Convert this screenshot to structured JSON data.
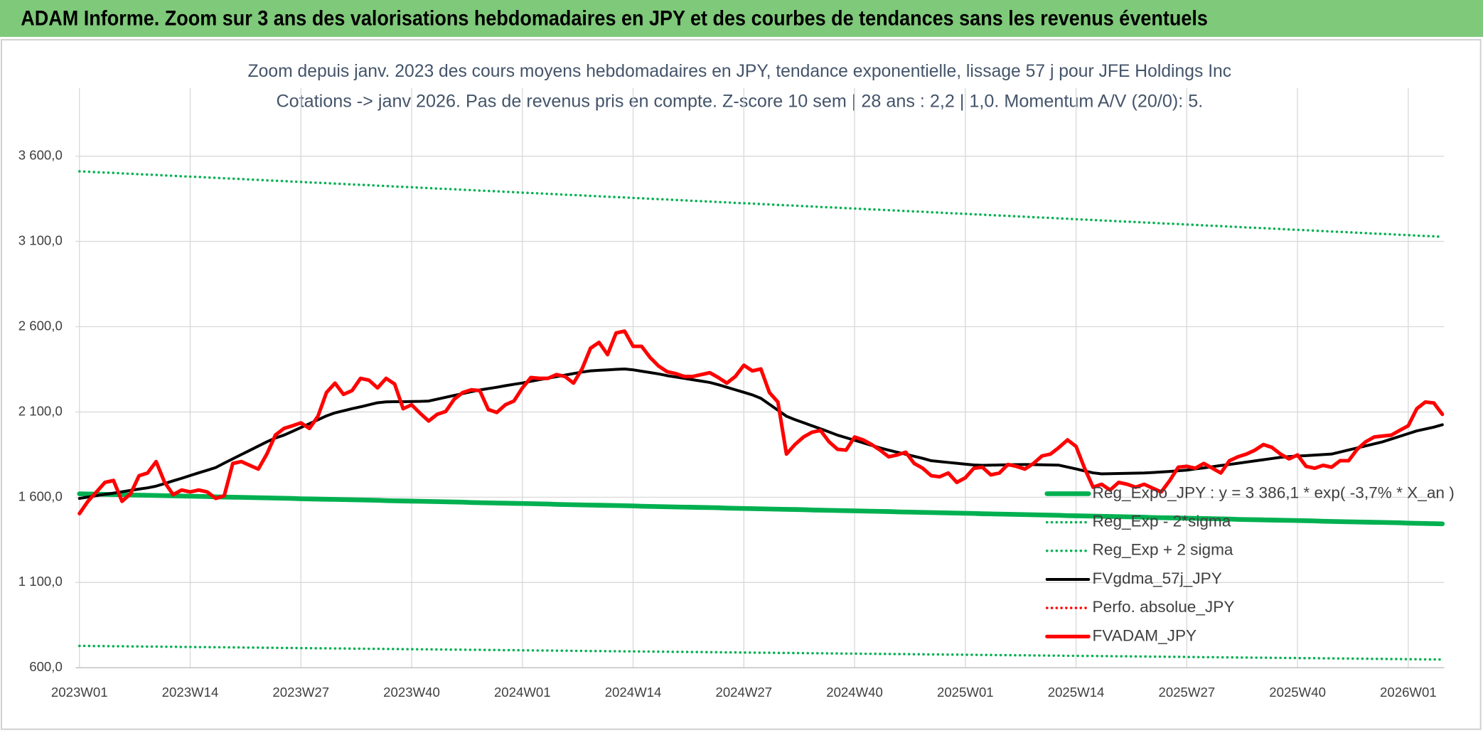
{
  "chart_data": {
    "type": "line",
    "title": "ADAM Informe. Zoom sur 3 ans des valorisations hebdomadaires en JPY et des courbes de tendances sans les revenus éventuels",
    "subtitle": [
      "Zoom depuis janv. 2023 des cours moyens hebdomadaires en JPY, tendance exponentielle, lissage 57 j pour JFE Holdings Inc",
      "Cotations -> janv 2026. Pas de revenus pris en compte. Z-score 10 sem | 28 ans : 2,2 | 1,0. Momentum A/V (20/0): 5."
    ],
    "categories": [
      "2023W01",
      null,
      null,
      null,
      null,
      null,
      null,
      null,
      null,
      null,
      null,
      null,
      null,
      "2023W14",
      null,
      null,
      null,
      null,
      null,
      null,
      null,
      null,
      null,
      null,
      null,
      null,
      "2023W27",
      null,
      null,
      null,
      null,
      null,
      null,
      null,
      null,
      null,
      null,
      null,
      null,
      "2023W40",
      null,
      null,
      null,
      null,
      null,
      null,
      null,
      null,
      null,
      null,
      null,
      null,
      "2024W01",
      null,
      null,
      null,
      null,
      null,
      null,
      null,
      null,
      null,
      null,
      null,
      null,
      "2024W14",
      null,
      null,
      null,
      null,
      null,
      null,
      null,
      null,
      null,
      null,
      null,
      null,
      "2024W27",
      null,
      null,
      null,
      null,
      null,
      null,
      null,
      null,
      null,
      null,
      null,
      null,
      "2024W40",
      null,
      null,
      null,
      null,
      null,
      null,
      null,
      null,
      null,
      null,
      null,
      null,
      "2025W01",
      null,
      null,
      null,
      null,
      null,
      null,
      null,
      null,
      null,
      null,
      null,
      null,
      "2025W14",
      null,
      null,
      null,
      null,
      null,
      null,
      null,
      null,
      null,
      null,
      null,
      null,
      "2025W27",
      null,
      null,
      null,
      null,
      null,
      null,
      null,
      null,
      null,
      null,
      null,
      null,
      "2025W40",
      null,
      null,
      null,
      null,
      null,
      null,
      null,
      null,
      null,
      null,
      null,
      null,
      "2026W01",
      null,
      null,
      null,
      null
    ],
    "ylim": [
      600,
      4000
    ],
    "yticks": [
      {
        "value": 600,
        "label": "600,0"
      },
      {
        "value": 1100,
        "label": "1 100,0"
      },
      {
        "value": 1600,
        "label": "1 600,0"
      },
      {
        "value": 2100,
        "label": "2 100,0"
      },
      {
        "value": 2600,
        "label": "2 600,0"
      },
      {
        "value": 3100,
        "label": "3 100,0"
      },
      {
        "value": 3600,
        "label": "3 600,0"
      }
    ],
    "grid": true,
    "legend": "lower right",
    "series": [
      {
        "name": "Reg_Expo_JPY : y = 3 386,1 * exp( -3,7% *  X_an )",
        "color": "#00b050",
        "dash": "solid",
        "values": [
          1620,
          1619,
          1618,
          1617,
          1616,
          1615,
          1613,
          1612,
          1611,
          1610,
          1609,
          1608,
          1607,
          1606,
          1605,
          1604,
          1602,
          1601,
          1600,
          1599,
          1598,
          1597,
          1596,
          1595,
          1594,
          1593,
          1591,
          1590,
          1589,
          1588,
          1587,
          1586,
          1585,
          1584,
          1583,
          1582,
          1580,
          1579,
          1578,
          1577,
          1576,
          1575,
          1574,
          1573,
          1572,
          1571,
          1569,
          1568,
          1567,
          1566,
          1565,
          1564,
          1563,
          1562,
          1561,
          1560,
          1558,
          1557,
          1556,
          1555,
          1554,
          1553,
          1552,
          1551,
          1550,
          1549,
          1547,
          1546,
          1545,
          1544,
          1543,
          1542,
          1541,
          1540,
          1539,
          1538,
          1536,
          1535,
          1534,
          1533,
          1532,
          1531,
          1530,
          1529,
          1528,
          1527,
          1525,
          1524,
          1523,
          1522,
          1521,
          1520,
          1519,
          1518,
          1517,
          1516,
          1514,
          1513,
          1512,
          1511,
          1510,
          1509,
          1508,
          1507,
          1506,
          1505,
          1503,
          1502,
          1501,
          1500,
          1499,
          1498,
          1497,
          1496,
          1495,
          1494,
          1492,
          1491,
          1490,
          1489,
          1488,
          1487,
          1486,
          1485,
          1484,
          1483,
          1481,
          1480,
          1479,
          1478,
          1477,
          1476,
          1475,
          1474,
          1473,
          1472,
          1470,
          1469,
          1468,
          1467,
          1466,
          1465,
          1464,
          1463,
          1462,
          1461,
          1459,
          1458,
          1457,
          1456,
          1455,
          1454,
          1453,
          1452,
          1451,
          1450,
          1448,
          1447,
          1446,
          1445,
          1444
        ]
      },
      {
        "name": "Reg_Exp - 2*sigma",
        "color": "#00b050",
        "dash": "dotted",
        "values": [
          728,
          728,
          727,
          727,
          726,
          726,
          725,
          725,
          724,
          724,
          723,
          723,
          722,
          722,
          721,
          721,
          720,
          720,
          719,
          719,
          718,
          718,
          717,
          717,
          716,
          716,
          715,
          715,
          714,
          714,
          713,
          713,
          712,
          712,
          711,
          711,
          710,
          710,
          709,
          709,
          708,
          708,
          707,
          707,
          706,
          706,
          705,
          705,
          704,
          704,
          703,
          703,
          702,
          702,
          701,
          701,
          700,
          700,
          699,
          699,
          698,
          698,
          697,
          697,
          696,
          696,
          695,
          695,
          694,
          694,
          693,
          693,
          692,
          692,
          691,
          691,
          690,
          690,
          689,
          689,
          688,
          688,
          687,
          687,
          686,
          686,
          685,
          685,
          684,
          684,
          683,
          683,
          682,
          682,
          681,
          681,
          680,
          680,
          679,
          679,
          678,
          678,
          677,
          677,
          676,
          676,
          675,
          675,
          674,
          674,
          673,
          673,
          672,
          672,
          671,
          671,
          670,
          670,
          669,
          669,
          668,
          668,
          667,
          667,
          666,
          666,
          665,
          665,
          664,
          664,
          663,
          663,
          662,
          662,
          661,
          661,
          660,
          660,
          659,
          659,
          658,
          658,
          657,
          657,
          656,
          656,
          655,
          655,
          654,
          654,
          653,
          653,
          652,
          652,
          651,
          651,
          650,
          650,
          649,
          649,
          648
        ]
      },
      {
        "name": "Reg_Exp + 2 sigma",
        "color": "#00b050",
        "dash": "dotted",
        "values": [
          3511,
          3509,
          3506,
          3504,
          3502,
          3499,
          3497,
          3494,
          3492,
          3490,
          3487,
          3485,
          3482,
          3480,
          3478,
          3475,
          3473,
          3470,
          3468,
          3466,
          3463,
          3461,
          3458,
          3456,
          3454,
          3451,
          3449,
          3446,
          3444,
          3442,
          3439,
          3437,
          3434,
          3432,
          3430,
          3427,
          3425,
          3422,
          3420,
          3418,
          3415,
          3413,
          3410,
          3408,
          3406,
          3403,
          3401,
          3398,
          3396,
          3394,
          3391,
          3389,
          3386,
          3384,
          3382,
          3379,
          3377,
          3374,
          3372,
          3370,
          3367,
          3365,
          3362,
          3360,
          3358,
          3355,
          3353,
          3350,
          3348,
          3346,
          3343,
          3341,
          3338,
          3336,
          3334,
          3331,
          3329,
          3326,
          3324,
          3322,
          3319,
          3317,
          3314,
          3312,
          3310,
          3307,
          3305,
          3302,
          3300,
          3298,
          3295,
          3293,
          3290,
          3288,
          3286,
          3283,
          3281,
          3278,
          3276,
          3274,
          3271,
          3269,
          3266,
          3264,
          3262,
          3259,
          3257,
          3254,
          3252,
          3250,
          3247,
          3245,
          3242,
          3240,
          3238,
          3235,
          3233,
          3230,
          3228,
          3226,
          3223,
          3221,
          3218,
          3216,
          3214,
          3211,
          3209,
          3206,
          3204,
          3202,
          3199,
          3197,
          3194,
          3192,
          3190,
          3187,
          3185,
          3182,
          3180,
          3178,
          3175,
          3173,
          3170,
          3168,
          3166,
          3163,
          3161,
          3158,
          3156,
          3154,
          3151,
          3149,
          3146,
          3144,
          3142,
          3139,
          3137,
          3134,
          3132,
          3130,
          3127
        ]
      },
      {
        "name": "FVgdma_57j_JPY",
        "color": "#000000",
        "dash": "solid",
        "values": [
          1593,
          1601,
          1609,
          1617,
          1624,
          1632,
          1640,
          1648,
          1655,
          1665,
          1680,
          1696,
          1711,
          1727,
          1743,
          1758,
          1774,
          1800,
          1825,
          1850,
          1875,
          1900,
          1925,
          1947,
          1964,
          1986,
          2009,
          2031,
          2054,
          2077,
          2095,
          2107,
          2119,
          2130,
          2142,
          2154,
          2159,
          2160,
          2160,
          2161,
          2162,
          2164,
          2175,
          2186,
          2197,
          2208,
          2219,
          2229,
          2237,
          2245,
          2254,
          2262,
          2270,
          2280,
          2289,
          2298,
          2307,
          2316,
          2325,
          2334,
          2341,
          2344,
          2347,
          2350,
          2352,
          2347,
          2339,
          2331,
          2323,
          2313,
          2305,
          2297,
          2289,
          2281,
          2273,
          2260,
          2245,
          2230,
          2215,
          2200,
          2180,
          2145,
          2110,
          2075,
          2055,
          2037,
          2019,
          2001,
          1983,
          1964,
          1949,
          1934,
          1919,
          1904,
          1889,
          1876,
          1864,
          1852,
          1840,
          1828,
          1814,
          1809,
          1804,
          1799,
          1794,
          1789,
          1787,
          1788,
          1789,
          1790,
          1791,
          1792,
          1791,
          1790,
          1789,
          1788,
          1777,
          1766,
          1754,
          1743,
          1737,
          1738,
          1739,
          1740,
          1741,
          1742,
          1745,
          1748,
          1751,
          1755,
          1759,
          1766,
          1772,
          1779,
          1786,
          1792,
          1799,
          1806,
          1813,
          1820,
          1827,
          1834,
          1838,
          1841,
          1844,
          1847,
          1850,
          1853,
          1865,
          1877,
          1889,
          1901,
          1913,
          1925,
          1941,
          1957,
          1973,
          1989,
          2000,
          2011,
          2025
        ]
      },
      {
        "name": "Perfo. absolue_JPY",
        "color": "#ff0000",
        "dash": "dotted"
      },
      {
        "name": "FVADAM_JPY",
        "color": "#ff0000",
        "dash": "solid",
        "values": [
          1504,
          1576,
          1631,
          1687,
          1698,
          1576,
          1620,
          1726,
          1742,
          1809,
          1687,
          1615,
          1642,
          1631,
          1642,
          1631,
          1593,
          1609,
          1798,
          1809,
          1787,
          1765,
          1853,
          1964,
          2003,
          2019,
          2036,
          2003,
          2075,
          2214,
          2269,
          2203,
          2225,
          2297,
          2286,
          2241,
          2297,
          2264,
          2119,
          2142,
          2092,
          2047,
          2086,
          2103,
          2175,
          2214,
          2230,
          2225,
          2114,
          2097,
          2142,
          2164,
          2241,
          2302,
          2297,
          2297,
          2319,
          2308,
          2269,
          2352,
          2474,
          2508,
          2436,
          2563,
          2574,
          2485,
          2485,
          2419,
          2369,
          2336,
          2325,
          2308,
          2308,
          2319,
          2330,
          2302,
          2269,
          2308,
          2374,
          2341,
          2352,
          2214,
          2158,
          1853,
          1909,
          1953,
          1981,
          1992,
          1925,
          1881,
          1876,
          1953,
          1936,
          1909,
          1876,
          1837,
          1848,
          1864,
          1798,
          1770,
          1726,
          1720,
          1742,
          1687,
          1714,
          1770,
          1776,
          1731,
          1742,
          1792,
          1781,
          1765,
          1798,
          1842,
          1853,
          1892,
          1936,
          1898,
          1770,
          1659,
          1676,
          1642,
          1687,
          1676,
          1659,
          1676,
          1653,
          1631,
          1698,
          1776,
          1781,
          1770,
          1798,
          1770,
          1742,
          1814,
          1837,
          1853,
          1876,
          1909,
          1892,
          1853,
          1825,
          1848,
          1781,
          1770,
          1787,
          1776,
          1814,
          1814,
          1881,
          1925,
          1953,
          1959,
          1964,
          1992,
          2019,
          2119,
          2158,
          2153,
          2086
        ]
      }
    ]
  }
}
